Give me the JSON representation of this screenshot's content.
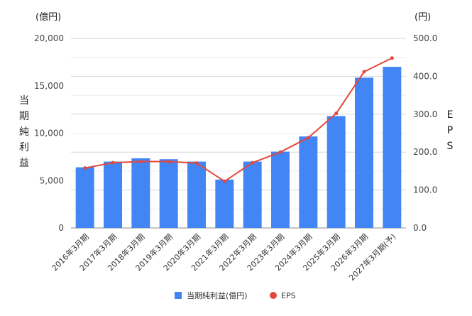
{
  "chart_data": {
    "type": "bar",
    "title": "",
    "categories": [
      "2016年3月期",
      "2017年3月期",
      "2018年3月期",
      "2019年3月期",
      "2020年3月期",
      "2021年3月期",
      "2022年3月期",
      "2023年3月期",
      "2024年3月期",
      "2025年3月期",
      "2026年3月期",
      "2027年3月期(予)"
    ],
    "series": [
      {
        "name": "当期純利益(億円)",
        "type": "bar",
        "axis": "left",
        "color": "#4285f4",
        "values": [
          6400,
          7000,
          7350,
          7250,
          7000,
          5100,
          7000,
          8050,
          9650,
          11800,
          15850,
          17000
        ]
      },
      {
        "name": "EPS",
        "type": "line",
        "axis": "right",
        "color": "#e2483d",
        "values": [
          158,
          172,
          175,
          175,
          171,
          123,
          172,
          200,
          238,
          302,
          412,
          448
        ]
      }
    ],
    "y_left": {
      "unit": "(億円)",
      "label": [
        "当",
        "期",
        "純",
        "利",
        "益"
      ],
      "ticks": [
        "0",
        "5,000",
        "10,000",
        "15,000",
        "20,000"
      ],
      "ylim": [
        0,
        20000
      ]
    },
    "y_right": {
      "unit": "(円)",
      "label": [
        "E",
        "P",
        "S"
      ],
      "ticks": [
        "0.0",
        "100.0",
        "200.0",
        "300.0",
        "400.0",
        "500.0"
      ],
      "ylim": [
        0,
        500
      ]
    },
    "grid": true,
    "legend_position": "bottom"
  }
}
